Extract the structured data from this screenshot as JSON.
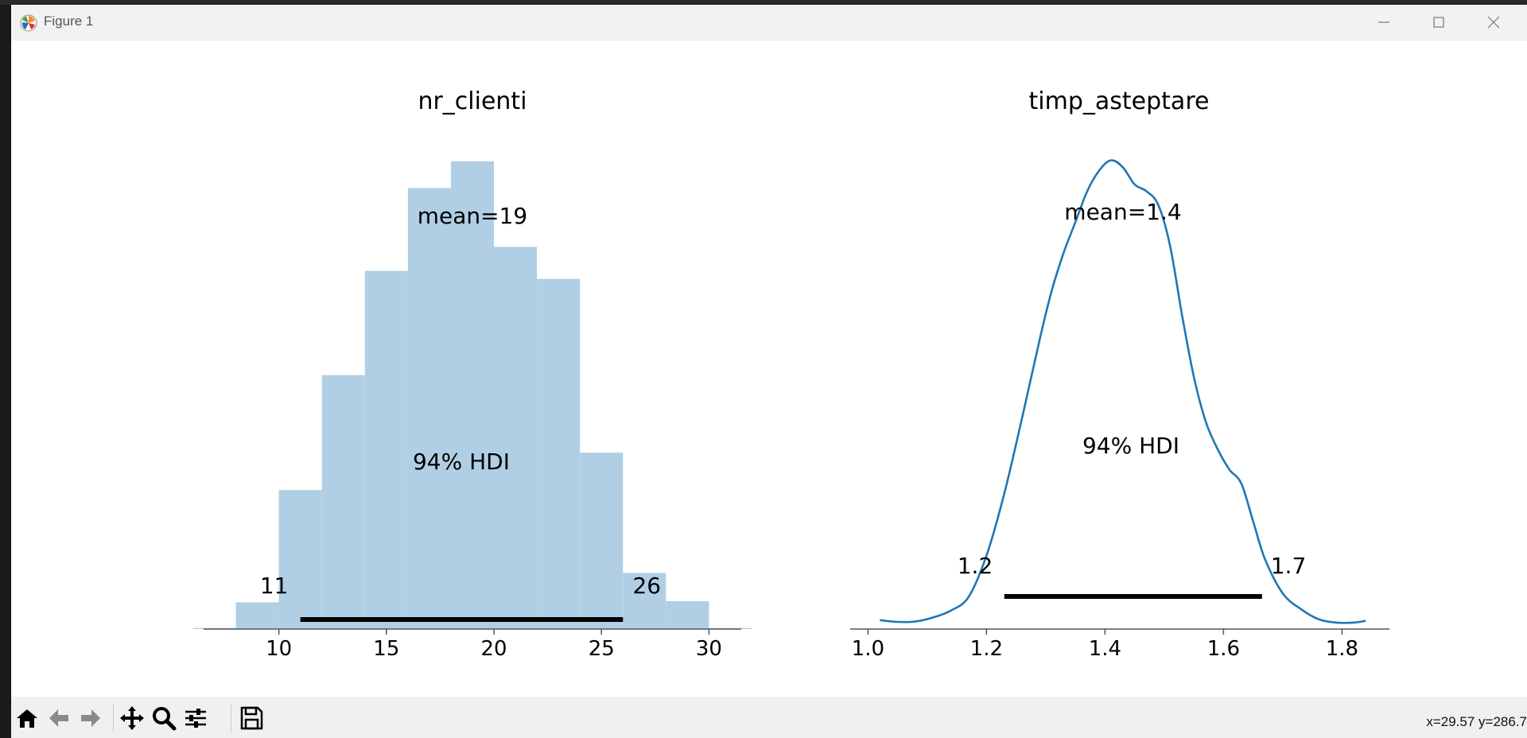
{
  "window": {
    "title": "Figure 1"
  },
  "toolbar": {
    "buttons": [
      "home-icon",
      "back-icon",
      "forward-icon",
      "pan-icon",
      "zoom-icon",
      "configure-icon",
      "save-icon"
    ],
    "coords_readout": "x=29.57 y=286.7"
  },
  "colors": {
    "hist_fill": "#b0cfe4",
    "kde_line": "#1f77b4",
    "hdi_bar": "#000000",
    "titlebar": "#f2f2f2"
  },
  "chart_data": [
    {
      "type": "bar",
      "title": "nr_clienti",
      "bins": [
        {
          "start": 6,
          "end": 8,
          "count": 2
        },
        {
          "start": 8,
          "end": 10,
          "count": 50
        },
        {
          "start": 10,
          "end": 12,
          "count": 260
        },
        {
          "start": 12,
          "end": 14,
          "count": 475
        },
        {
          "start": 14,
          "end": 16,
          "count": 670
        },
        {
          "start": 16,
          "end": 18,
          "count": 825
        },
        {
          "start": 18,
          "end": 20,
          "count": 875
        },
        {
          "start": 20,
          "end": 22,
          "count": 715
        },
        {
          "start": 22,
          "end": 24,
          "count": 655
        },
        {
          "start": 24,
          "end": 26,
          "count": 330
        },
        {
          "start": 26,
          "end": 28,
          "count": 105
        },
        {
          "start": 28,
          "end": 30,
          "count": 52
        },
        {
          "start": 30,
          "end": 32,
          "count": 2
        }
      ],
      "xlim": [
        6.5,
        31.5
      ],
      "ylim": [
        0,
        900
      ],
      "xticks": [
        10,
        15,
        20,
        25,
        30
      ],
      "mean_label": "mean=19",
      "hdi_label": "94% HDI",
      "hdi": [
        11,
        26
      ],
      "hdi_low_label": "11",
      "hdi_high_label": "26",
      "grid": false
    },
    {
      "type": "line",
      "title": "timp_asteptare",
      "x": [
        1.02,
        1.05,
        1.08,
        1.11,
        1.14,
        1.17,
        1.2,
        1.23,
        1.26,
        1.29,
        1.31,
        1.33,
        1.35,
        1.37,
        1.39,
        1.41,
        1.43,
        1.45,
        1.47,
        1.49,
        1.51,
        1.53,
        1.55,
        1.57,
        1.59,
        1.61,
        1.63,
        1.65,
        1.67,
        1.7,
        1.73,
        1.76,
        1.79,
        1.82,
        1.84
      ],
      "y": [
        0.12,
        0.07,
        0.08,
        0.2,
        0.4,
        0.8,
        2.0,
        3.8,
        6.0,
        8.3,
        9.7,
        10.8,
        11.7,
        12.6,
        13.2,
        13.5,
        13.3,
        12.8,
        12.6,
        12.2,
        11.0,
        9.0,
        7.2,
        5.9,
        5.1,
        4.5,
        4.1,
        3.0,
        1.9,
        0.9,
        0.45,
        0.15,
        0.05,
        0.05,
        0.1
      ],
      "xlim": [
        0.97,
        1.88
      ],
      "ylim": [
        0,
        14.0
      ],
      "xticks": [
        "1.0",
        "1.2",
        "1.4",
        "1.6",
        "1.8"
      ],
      "mean_label": "mean=1.4",
      "hdi_label": "94% HDI",
      "hdi": [
        1.23,
        1.665
      ],
      "hdi_low_label": "1.2",
      "hdi_high_label": "1.7",
      "grid": false
    }
  ]
}
